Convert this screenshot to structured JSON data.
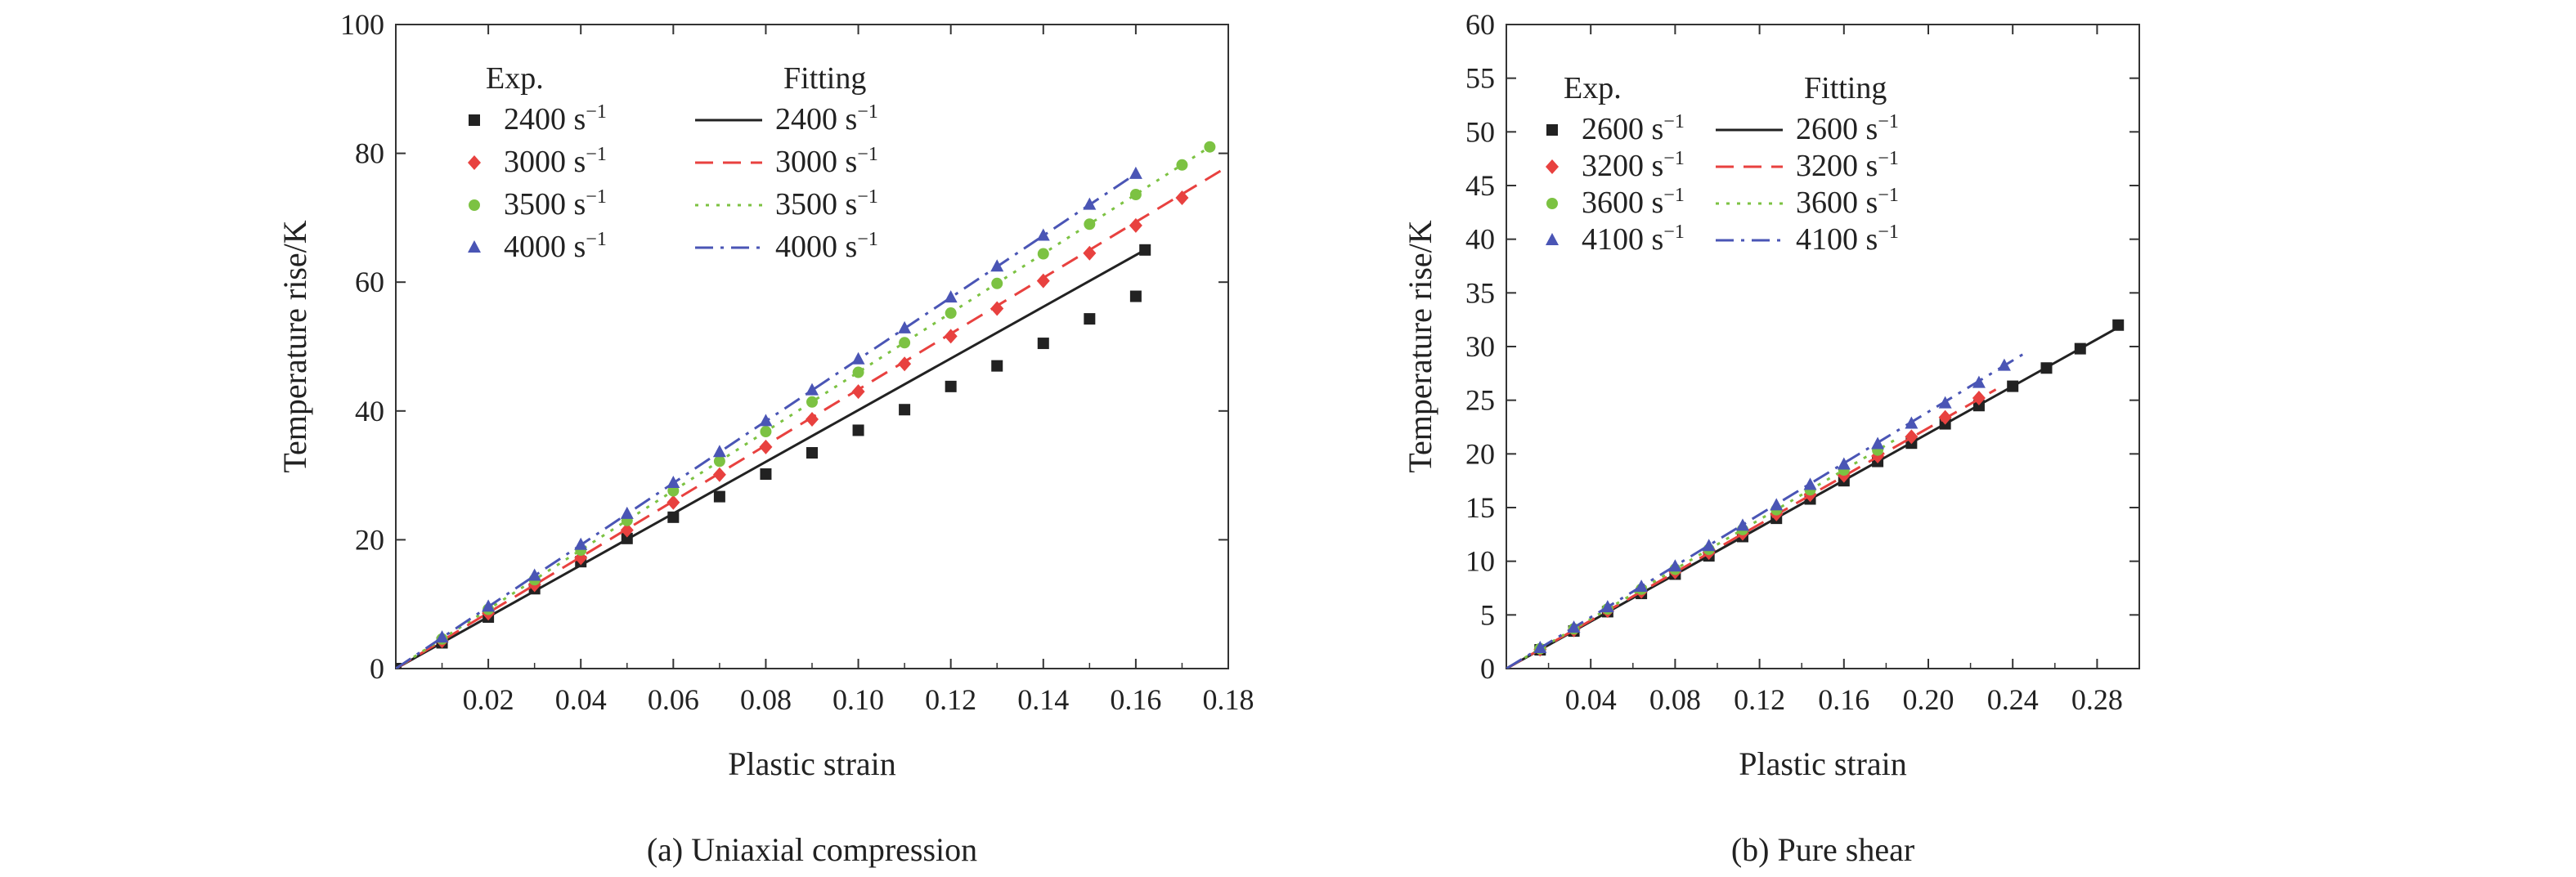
{
  "chart_data": [
    {
      "type": "line",
      "caption": "(a) Uniaxial compression",
      "xlabel": "Plastic strain",
      "ylabel": "Temperature rise/K",
      "xlim": [
        0,
        0.18
      ],
      "ylim": [
        0,
        100
      ],
      "xticks": [
        0.02,
        0.04,
        0.06,
        0.08,
        0.1,
        0.12,
        0.14,
        0.16,
        0.18
      ],
      "xtick_labels": [
        "0.02",
        "0.04",
        "0.06",
        "0.08",
        "0.10",
        "0.12",
        "0.14",
        "0.16",
        "0.18"
      ],
      "yticks": [
        0,
        20,
        40,
        60,
        80,
        100
      ],
      "ytick_labels": [
        "0",
        "20",
        "40",
        "60",
        "80",
        "100"
      ],
      "legend": {
        "placement": "top-left",
        "exp_header": "Exp.",
        "fit_header": "Fitting"
      },
      "series": [
        {
          "name": "2400 s",
          "name_sup": "−1",
          "color": "#222222",
          "marker": "square",
          "line": "solid",
          "exp": {
            "x": [
              0,
              0.01,
              0.02,
              0.03,
              0.04,
              0.05,
              0.06,
              0.07,
              0.08,
              0.09,
              0.1,
              0.11,
              0.12,
              0.13,
              0.14,
              0.15,
              0.16
            ],
            "y": [
              0,
              4,
              8,
              12.4,
              16.6,
              20.2,
              23.5,
              26.7,
              30.2,
              33.5,
              37,
              40.2,
              43.8,
              47,
              50.5,
              54.3,
              57.8
            ]
          },
          "fit": {
            "x": [
              0,
              0.162
            ],
            "y": [
              0,
              65
            ]
          },
          "exp_end": {
            "x": 0.162,
            "y": 65
          }
        },
        {
          "name": "3000 s",
          "name_sup": "−1",
          "color": "#e8413f",
          "marker": "diamond",
          "line": "dashed",
          "exp": {
            "x": [
              0.01,
              0.02,
              0.03,
              0.04,
              0.05,
              0.06,
              0.07,
              0.08,
              0.09,
              0.1,
              0.11,
              0.12,
              0.13,
              0.14,
              0.15,
              0.16,
              0.17
            ],
            "y": [
              4.3,
              8.6,
              13,
              17.2,
              21.5,
              25.8,
              30.1,
              34.4,
              38.7,
              43,
              47.3,
              51.6,
              55.9,
              60.2,
              64.5,
              68.8,
              73.1
            ]
          },
          "fit": {
            "x": [
              0,
              0.18
            ],
            "y": [
              0,
              78
            ]
          }
        },
        {
          "name": "3500 s",
          "name_sup": "−1",
          "color": "#7cc242",
          "marker": "circle",
          "line": "dotted",
          "exp": {
            "x": [
              0.01,
              0.02,
              0.03,
              0.04,
              0.05,
              0.06,
              0.07,
              0.08,
              0.09,
              0.1,
              0.11,
              0.12,
              0.13,
              0.14,
              0.15,
              0.16,
              0.17,
              0.176
            ],
            "y": [
              4.6,
              9.2,
              13.8,
              18.4,
              23,
              27.6,
              32.2,
              36.8,
              41.4,
              46,
              50.6,
              55.2,
              59.8,
              64.4,
              69,
              73.6,
              78.2,
              81
            ]
          },
          "fit": {
            "x": [
              0,
              0.176
            ],
            "y": [
              0,
              81
            ]
          }
        },
        {
          "name": "4000 s",
          "name_sup": "−1",
          "color": "#4a55b5",
          "marker": "triangle",
          "line": "dashdot",
          "exp": {
            "x": [
              0.01,
              0.02,
              0.03,
              0.04,
              0.05,
              0.06,
              0.07,
              0.08,
              0.09,
              0.1,
              0.11,
              0.12,
              0.13,
              0.14,
              0.15,
              0.16
            ],
            "y": [
              4.8,
              9.6,
              14.4,
              19.2,
              24,
              28.8,
              33.6,
              38.4,
              43.2,
              48,
              52.8,
              57.6,
              62.4,
              67.2,
              72,
              76.8
            ]
          },
          "fit": {
            "x": [
              0,
              0.161
            ],
            "y": [
              0,
              77.3
            ]
          }
        }
      ]
    },
    {
      "type": "line",
      "caption": "(b) Pure shear",
      "xlabel": "Plastic strain",
      "ylabel": "Temperature rise/K",
      "xlim": [
        0,
        0.3
      ],
      "ylim": [
        0,
        60
      ],
      "xticks": [
        0.04,
        0.08,
        0.12,
        0.16,
        0.2,
        0.24,
        0.28
      ],
      "xtick_labels": [
        "0.04",
        "0.08",
        "0.12",
        "0.16",
        "0.20",
        "0.24",
        "0.28"
      ],
      "yticks": [
        0,
        5,
        10,
        15,
        20,
        25,
        30,
        35,
        40,
        45,
        50,
        55,
        60
      ],
      "ytick_labels": [
        "0",
        "5",
        "10",
        "15",
        "20",
        "25",
        "30",
        "35",
        "40",
        "45",
        "50",
        "55",
        "60"
      ],
      "legend": {
        "placement": "top-left",
        "exp_header": "Exp.",
        "fit_header": "Fitting"
      },
      "series": [
        {
          "name": "2600 s",
          "name_sup": "−1",
          "color": "#222222",
          "marker": "square",
          "line": "solid",
          "exp": {
            "x": [
              0.016,
              0.032,
              0.048,
              0.064,
              0.08,
              0.096,
              0.112,
              0.128,
              0.144,
              0.16,
              0.176,
              0.192,
              0.208,
              0.224,
              0.24,
              0.256,
              0.272,
              0.29
            ],
            "y": [
              1.75,
              3.5,
              5.3,
              7.0,
              8.8,
              10.5,
              12.3,
              14.0,
              15.8,
              17.5,
              19.3,
              21.0,
              22.8,
              24.5,
              26.3,
              28.0,
              29.8,
              32
            ]
          },
          "fit": {
            "x": [
              0,
              0.292
            ],
            "y": [
              0,
              32
            ]
          }
        },
        {
          "name": "3200 s",
          "name_sup": "−1",
          "color": "#e8413f",
          "marker": "diamond",
          "line": "dashed",
          "exp": {
            "x": [
              0.016,
              0.032,
              0.048,
              0.064,
              0.08,
              0.096,
              0.112,
              0.128,
              0.144,
              0.16,
              0.176,
              0.192,
              0.208,
              0.224
            ],
            "y": [
              1.8,
              3.6,
              5.4,
              7.2,
              9.0,
              10.8,
              12.6,
              14.4,
              16.2,
              18.0,
              19.8,
              21.6,
              23.4,
              25.2
            ]
          },
          "fit": {
            "x": [
              0,
              0.232
            ],
            "y": [
              0,
              26
            ]
          }
        },
        {
          "name": "3600 s",
          "name_sup": "−1",
          "color": "#7cc242",
          "marker": "circle",
          "line": "dotted",
          "exp": {
            "x": [
              0.016,
              0.032,
              0.048,
              0.064,
              0.08,
              0.096,
              0.112,
              0.128,
              0.144,
              0.16,
              0.176
            ],
            "y": [
              1.85,
              3.7,
              5.55,
              7.4,
              9.25,
              11.1,
              12.95,
              14.8,
              16.65,
              18.5,
              20.35
            ]
          },
          "fit": {
            "x": [
              0,
              0.185
            ],
            "y": [
              0,
              21.4
            ]
          }
        },
        {
          "name": "4100 s",
          "name_sup": "−1",
          "color": "#4a55b5",
          "marker": "triangle",
          "line": "dashdot",
          "exp": {
            "x": [
              0.016,
              0.032,
              0.048,
              0.064,
              0.08,
              0.096,
              0.112,
              0.128,
              0.144,
              0.16,
              0.176,
              0.192,
              0.208,
              0.224,
              0.236
            ],
            "y": [
              1.9,
              3.8,
              5.7,
              7.6,
              9.5,
              11.4,
              13.3,
              15.2,
              17.1,
              19.0,
              20.9,
              22.8,
              24.7,
              26.6,
              28.2
            ]
          },
          "fit": {
            "x": [
              0,
              0.245
            ],
            "y": [
              0,
              29.3
            ]
          }
        }
      ]
    }
  ]
}
